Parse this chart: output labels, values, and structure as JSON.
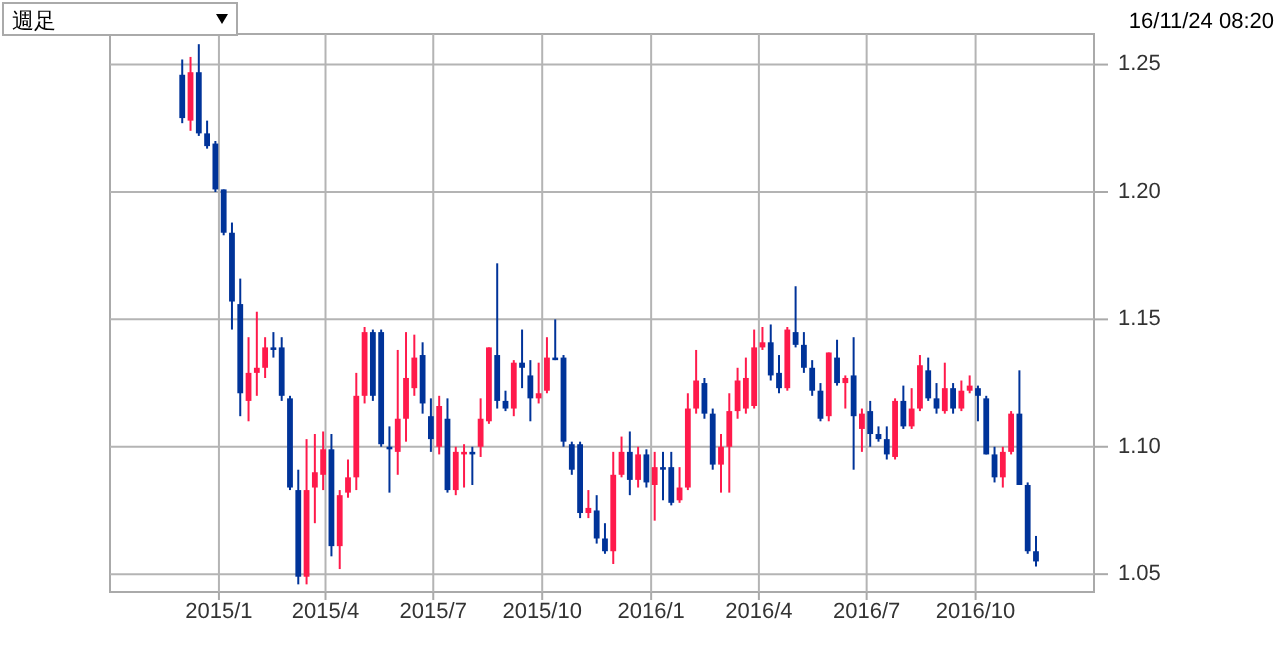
{
  "chart_data": {
    "type": "candlestick",
    "annotations": [
      "週足",
      "16/11/24 08:20"
    ],
    "x": [
      "2014-12-01",
      "2014-12-08",
      "2014-12-15",
      "2014-12-22",
      "2014-12-29",
      "2015-01-05",
      "2015-01-12",
      "2015-01-19",
      "2015-01-26",
      "2015-02-02",
      "2015-02-09",
      "2015-02-16",
      "2015-02-23",
      "2015-03-02",
      "2015-03-09",
      "2015-03-16",
      "2015-03-23",
      "2015-03-30",
      "2015-04-06",
      "2015-04-13",
      "2015-04-20",
      "2015-04-27",
      "2015-05-04",
      "2015-05-11",
      "2015-05-18",
      "2015-05-25",
      "2015-06-01",
      "2015-06-08",
      "2015-06-15",
      "2015-06-22",
      "2015-06-29",
      "2015-07-06",
      "2015-07-13",
      "2015-07-20",
      "2015-07-27",
      "2015-08-03",
      "2015-08-10",
      "2015-08-17",
      "2015-08-24",
      "2015-08-31",
      "2015-09-07",
      "2015-09-14",
      "2015-09-21",
      "2015-09-28",
      "2015-10-05",
      "2015-10-12",
      "2015-10-19",
      "2015-10-26",
      "2015-11-02",
      "2015-11-09",
      "2015-11-16",
      "2015-11-23",
      "2015-11-30",
      "2015-12-07",
      "2015-12-14",
      "2015-12-21",
      "2015-12-28",
      "2016-01-04",
      "2016-01-11",
      "2016-01-18",
      "2016-01-25",
      "2016-02-01",
      "2016-02-08",
      "2016-02-15",
      "2016-02-22",
      "2016-02-29",
      "2016-03-07",
      "2016-03-14",
      "2016-03-21",
      "2016-03-28",
      "2016-04-04",
      "2016-04-11",
      "2016-04-18",
      "2016-04-25",
      "2016-05-02",
      "2016-05-09",
      "2016-05-16",
      "2016-05-23",
      "2016-05-30",
      "2016-06-06",
      "2016-06-13",
      "2016-06-20",
      "2016-06-27",
      "2016-07-04",
      "2016-07-11",
      "2016-07-18",
      "2016-07-25",
      "2016-08-01",
      "2016-08-08",
      "2016-08-15",
      "2016-08-22",
      "2016-08-29",
      "2016-09-05",
      "2016-09-12",
      "2016-09-19",
      "2016-09-26",
      "2016-10-03",
      "2016-10-10",
      "2016-10-17",
      "2016-10-24",
      "2016-10-31",
      "2016-11-07",
      "2016-11-14",
      "2016-11-21"
    ],
    "ohlc": [
      [
        1.246,
        1.252,
        1.227,
        1.229
      ],
      [
        1.228,
        1.253,
        1.224,
        1.247
      ],
      [
        1.247,
        1.258,
        1.222,
        1.223
      ],
      [
        1.223,
        1.228,
        1.217,
        1.218
      ],
      [
        1.219,
        1.22,
        1.2,
        1.201
      ],
      [
        1.201,
        1.201,
        1.183,
        1.184
      ],
      [
        1.184,
        1.188,
        1.146,
        1.157
      ],
      [
        1.156,
        1.166,
        1.112,
        1.121
      ],
      [
        1.118,
        1.143,
        1.11,
        1.129
      ],
      [
        1.129,
        1.153,
        1.12,
        1.131
      ],
      [
        1.131,
        1.143,
        1.127,
        1.139
      ],
      [
        1.139,
        1.145,
        1.135,
        1.138
      ],
      [
        1.139,
        1.143,
        1.118,
        1.12
      ],
      [
        1.119,
        1.12,
        1.083,
        1.084
      ],
      [
        1.083,
        1.091,
        1.046,
        1.049
      ],
      [
        1.049,
        1.103,
        1.046,
        1.083
      ],
      [
        1.084,
        1.105,
        1.07,
        1.09
      ],
      [
        1.089,
        1.106,
        1.083,
        1.099
      ],
      [
        1.099,
        1.105,
        1.057,
        1.061
      ],
      [
        1.061,
        1.083,
        1.052,
        1.081
      ],
      [
        1.082,
        1.095,
        1.08,
        1.088
      ],
      [
        1.088,
        1.129,
        1.083,
        1.12
      ],
      [
        1.12,
        1.147,
        1.117,
        1.145
      ],
      [
        1.145,
        1.146,
        1.118,
        1.12
      ],
      [
        1.145,
        1.146,
        1.1,
        1.101
      ],
      [
        1.1,
        1.108,
        1.082,
        1.099
      ],
      [
        1.098,
        1.138,
        1.089,
        1.111
      ],
      [
        1.111,
        1.145,
        1.102,
        1.127
      ],
      [
        1.123,
        1.144,
        1.12,
        1.135
      ],
      [
        1.136,
        1.141,
        1.113,
        1.117
      ],
      [
        1.112,
        1.119,
        1.098,
        1.103
      ],
      [
        1.1,
        1.12,
        1.097,
        1.116
      ],
      [
        1.111,
        1.119,
        1.082,
        1.083
      ],
      [
        1.083,
        1.1,
        1.081,
        1.098
      ],
      [
        1.097,
        1.101,
        1.084,
        1.098
      ],
      [
        1.098,
        1.1,
        1.085,
        1.097
      ],
      [
        1.1,
        1.119,
        1.096,
        1.111
      ],
      [
        1.11,
        1.139,
        1.109,
        1.139
      ],
      [
        1.136,
        1.172,
        1.115,
        1.118
      ],
      [
        1.118,
        1.122,
        1.114,
        1.115
      ],
      [
        1.115,
        1.134,
        1.112,
        1.133
      ],
      [
        1.133,
        1.146,
        1.123,
        1.131
      ],
      [
        1.128,
        1.134,
        1.11,
        1.119
      ],
      [
        1.119,
        1.133,
        1.117,
        1.121
      ],
      [
        1.122,
        1.143,
        1.121,
        1.135
      ],
      [
        1.135,
        1.15,
        1.134,
        1.134
      ],
      [
        1.135,
        1.136,
        1.1,
        1.102
      ],
      [
        1.101,
        1.102,
        1.089,
        1.091
      ],
      [
        1.101,
        1.102,
        1.072,
        1.074
      ],
      [
        1.074,
        1.083,
        1.072,
        1.076
      ],
      [
        1.075,
        1.081,
        1.062,
        1.064
      ],
      [
        1.064,
        1.07,
        1.058,
        1.059
      ],
      [
        1.059,
        1.098,
        1.054,
        1.089
      ],
      [
        1.089,
        1.104,
        1.088,
        1.098
      ],
      [
        1.098,
        1.106,
        1.081,
        1.087
      ],
      [
        1.087,
        1.1,
        1.084,
        1.097
      ],
      [
        1.097,
        1.099,
        1.084,
        1.086
      ],
      [
        1.085,
        1.098,
        1.071,
        1.092
      ],
      [
        1.092,
        1.098,
        1.079,
        1.091
      ],
      [
        1.092,
        1.098,
        1.077,
        1.078
      ],
      [
        1.079,
        1.092,
        1.078,
        1.084
      ],
      [
        1.084,
        1.121,
        1.083,
        1.115
      ],
      [
        1.115,
        1.138,
        1.113,
        1.126
      ],
      [
        1.125,
        1.127,
        1.111,
        1.113
      ],
      [
        1.113,
        1.115,
        1.091,
        1.093
      ],
      [
        1.093,
        1.105,
        1.082,
        1.1
      ],
      [
        1.1,
        1.121,
        1.082,
        1.114
      ],
      [
        1.114,
        1.131,
        1.111,
        1.126
      ],
      [
        1.115,
        1.135,
        1.113,
        1.127
      ],
      [
        1.116,
        1.146,
        1.115,
        1.139
      ],
      [
        1.139,
        1.147,
        1.138,
        1.141
      ],
      [
        1.141,
        1.148,
        1.126,
        1.128
      ],
      [
        1.129,
        1.136,
        1.121,
        1.123
      ],
      [
        1.123,
        1.147,
        1.122,
        1.146
      ],
      [
        1.145,
        1.163,
        1.139,
        1.14
      ],
      [
        1.14,
        1.145,
        1.129,
        1.131
      ],
      [
        1.131,
        1.134,
        1.12,
        1.122
      ],
      [
        1.122,
        1.125,
        1.11,
        1.111
      ],
      [
        1.112,
        1.137,
        1.11,
        1.137
      ],
      [
        1.135,
        1.142,
        1.124,
        1.125
      ],
      [
        1.125,
        1.128,
        1.115,
        1.127
      ],
      [
        1.128,
        1.143,
        1.091,
        1.112
      ],
      [
        1.107,
        1.115,
        1.098,
        1.113
      ],
      [
        1.114,
        1.118,
        1.1,
        1.105
      ],
      [
        1.105,
        1.108,
        1.102,
        1.103
      ],
      [
        1.103,
        1.108,
        1.095,
        1.097
      ],
      [
        1.096,
        1.119,
        1.095,
        1.118
      ],
      [
        1.118,
        1.124,
        1.107,
        1.108
      ],
      [
        1.108,
        1.123,
        1.107,
        1.115
      ],
      [
        1.115,
        1.136,
        1.114,
        1.132
      ],
      [
        1.13,
        1.135,
        1.118,
        1.119
      ],
      [
        1.119,
        1.125,
        1.113,
        1.115
      ],
      [
        1.114,
        1.133,
        1.113,
        1.123
      ],
      [
        1.123,
        1.125,
        1.113,
        1.115
      ],
      [
        1.115,
        1.126,
        1.114,
        1.122
      ],
      [
        1.122,
        1.128,
        1.121,
        1.124
      ],
      [
        1.123,
        1.124,
        1.11,
        1.12
      ],
      [
        1.119,
        1.12,
        1.097,
        1.097
      ],
      [
        1.097,
        1.1,
        1.086,
        1.088
      ],
      [
        1.088,
        1.1,
        1.084,
        1.098
      ],
      [
        1.098,
        1.114,
        1.097,
        1.113
      ],
      [
        1.113,
        1.13,
        1.085,
        1.085
      ],
      [
        1.085,
        1.086,
        1.058,
        1.059
      ],
      [
        1.059,
        1.065,
        1.053,
        1.055
      ]
    ],
    "colors": [
      "#003399",
      "#ff1a4b",
      "#003399",
      "#003399",
      "#003399",
      "#003399",
      "#003399",
      "#003399",
      "#ff1a4b",
      "#ff1a4b",
      "#ff1a4b",
      "#003399",
      "#003399",
      "#003399",
      "#003399",
      "#ff1a4b",
      "#ff1a4b",
      "#ff1a4b",
      "#003399",
      "#ff1a4b",
      "#ff1a4b",
      "#ff1a4b",
      "#ff1a4b",
      "#003399",
      "#003399",
      "#003399",
      "#ff1a4b",
      "#ff1a4b",
      "#ff1a4b",
      "#003399",
      "#003399",
      "#ff1a4b",
      "#003399",
      "#ff1a4b",
      "#ff1a4b",
      "#003399",
      "#ff1a4b",
      "#ff1a4b",
      "#003399",
      "#003399",
      "#ff1a4b",
      "#003399",
      "#003399",
      "#ff1a4b",
      "#ff1a4b",
      "#003399",
      "#003399",
      "#003399",
      "#003399",
      "#ff1a4b",
      "#003399",
      "#003399",
      "#ff1a4b",
      "#ff1a4b",
      "#003399",
      "#ff1a4b",
      "#003399",
      "#ff1a4b",
      "#003399",
      "#003399",
      "#ff1a4b",
      "#ff1a4b",
      "#ff1a4b",
      "#003399",
      "#003399",
      "#ff1a4b",
      "#ff1a4b",
      "#ff1a4b",
      "#ff1a4b",
      "#ff1a4b",
      "#ff1a4b",
      "#003399",
      "#003399",
      "#ff1a4b",
      "#003399",
      "#003399",
      "#003399",
      "#003399",
      "#ff1a4b",
      "#003399",
      "#ff1a4b",
      "#003399",
      "#ff1a4b",
      "#003399",
      "#003399",
      "#003399",
      "#ff1a4b",
      "#003399",
      "#ff1a4b",
      "#ff1a4b",
      "#003399",
      "#003399",
      "#ff1a4b",
      "#003399",
      "#ff1a4b",
      "#ff1a4b",
      "#003399",
      "#003399",
      "#003399",
      "#ff1a4b",
      "#ff1a4b",
      "#003399",
      "#003399",
      "#003399"
    ],
    "xlim": [
      "2014-10-01",
      "2017-01-09"
    ],
    "ylim": [
      1.043,
      1.262
    ],
    "xticks": [
      {
        "value": "2015-01-01",
        "label": "2015/1"
      },
      {
        "value": "2015-04-01",
        "label": "2015/4"
      },
      {
        "value": "2015-07-01",
        "label": "2015/7"
      },
      {
        "value": "2015-10-01",
        "label": "2015/10"
      },
      {
        "value": "2016-01-01",
        "label": "2016/1"
      },
      {
        "value": "2016-04-01",
        "label": "2016/4"
      },
      {
        "value": "2016-07-01",
        "label": "2016/7"
      },
      {
        "value": "2016-10-01",
        "label": "2016/10"
      }
    ],
    "yticks": [
      1.05,
      {
        "value": 1.1,
        "label": "1.10"
      },
      1.15,
      {
        "value": 1.2,
        "label": "1.20"
      },
      1.25
    ],
    "grid": true
  }
}
